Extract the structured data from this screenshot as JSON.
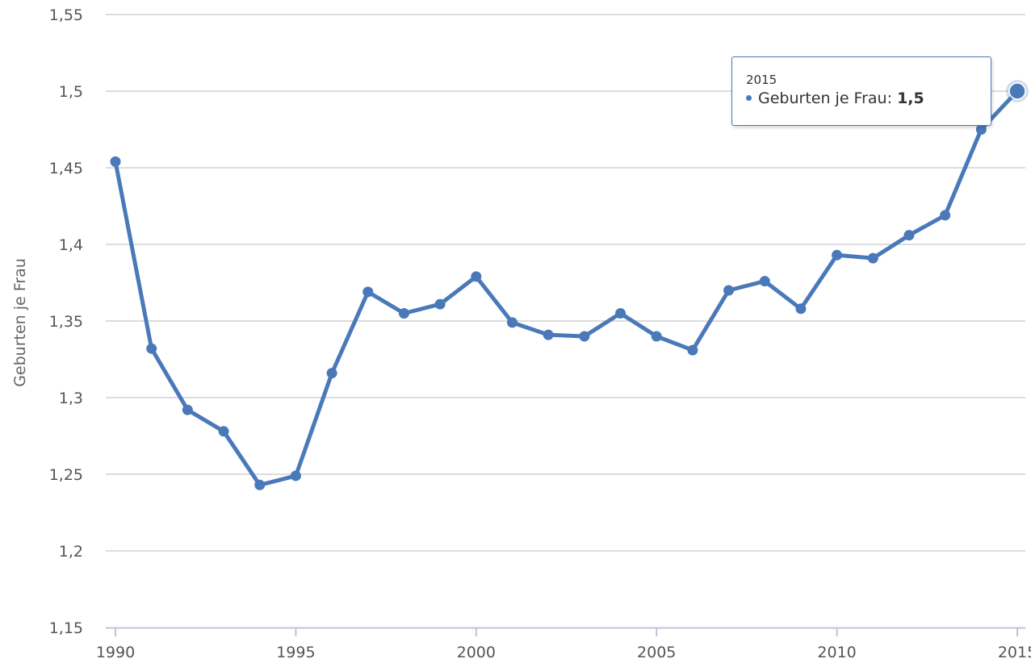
{
  "chart_data": {
    "type": "line",
    "title": "",
    "xlabel": "",
    "ylabel": "Geburten je Frau",
    "xlim": [
      1990,
      2015
    ],
    "ylim": [
      1.15,
      1.55
    ],
    "grid": true,
    "x_ticks": [
      "1990",
      "1995",
      "2000",
      "2005",
      "2010",
      "2015"
    ],
    "x_tick_values": [
      1990,
      1995,
      2000,
      2005,
      2010,
      2015
    ],
    "y_ticks": [
      "1,55",
      "1,5",
      "1,45",
      "1,4",
      "1,35",
      "1,3",
      "1,25",
      "1,2",
      "1,15"
    ],
    "y_tick_values": [
      1.55,
      1.5,
      1.45,
      1.4,
      1.35,
      1.3,
      1.25,
      1.2,
      1.15
    ],
    "color": "#4a79b9",
    "series": [
      {
        "name": "Geburten je Frau",
        "x": [
          1990,
          1991,
          1992,
          1993,
          1994,
          1995,
          1996,
          1997,
          1998,
          1999,
          2000,
          2001,
          2002,
          2003,
          2004,
          2005,
          2006,
          2007,
          2008,
          2009,
          2010,
          2011,
          2012,
          2013,
          2014,
          2015
        ],
        "values": [
          1.454,
          1.332,
          1.292,
          1.278,
          1.243,
          1.249,
          1.316,
          1.369,
          1.355,
          1.361,
          1.379,
          1.349,
          1.341,
          1.34,
          1.355,
          1.34,
          1.331,
          1.37,
          1.376,
          1.358,
          1.393,
          1.391,
          1.406,
          1.419,
          1.475,
          1.5
        ]
      }
    ],
    "tooltip": {
      "title": "2015",
      "series_label": "Geburten je Frau",
      "separator": ":",
      "value_text": "1,5",
      "highlight_x": 2015,
      "highlight_y": 1.5
    }
  }
}
